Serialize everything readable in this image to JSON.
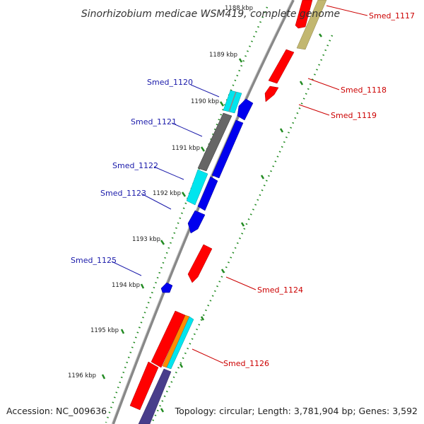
{
  "title": "Sinorhizobium medicae WSM419, complete genome",
  "accession": "Accession: NC_009636",
  "topology": "Topology: circular; Length: 3,781,904 bp; Genes: 3,592",
  "ticks": [
    {
      "label": "1188 kbp"
    },
    {
      "label": "1189 kbp"
    },
    {
      "label": "1190 kbp"
    },
    {
      "label": "1191 kbp"
    },
    {
      "label": "1192 kbp"
    },
    {
      "label": "1193 kbp"
    },
    {
      "label": "1194 kbp"
    },
    {
      "label": "1195 kbp"
    },
    {
      "label": "1196 kbp"
    }
  ],
  "gene_labels": [
    {
      "name": "Smed_1117",
      "strand": "plus"
    },
    {
      "name": "Smed_1118",
      "strand": "plus"
    },
    {
      "name": "Smed_1119",
      "strand": "plus"
    },
    {
      "name": "Smed_1120",
      "strand": "minus"
    },
    {
      "name": "Smed_1121",
      "strand": "minus"
    },
    {
      "name": "Smed_1122",
      "strand": "minus"
    },
    {
      "name": "Smed_1123",
      "strand": "minus"
    },
    {
      "name": "Smed_1124",
      "strand": "plus"
    },
    {
      "name": "Smed_1125",
      "strand": "minus"
    },
    {
      "name": "Smed_1126",
      "strand": "plus"
    }
  ],
  "colors": {
    "backbone": "#888888",
    "forward_gene": "#ff0000",
    "reverse_gene": "#0000ee",
    "rna_gene": "#00e5ee",
    "pseudo_gene": "#666666",
    "other_gene": "#c2b770",
    "orange_gene": "#ff8c00",
    "slate_gene": "#483d8b",
    "tick_mark": "#228b22",
    "label_left": "#1a1aaa",
    "label_right": "#cc0000"
  }
}
